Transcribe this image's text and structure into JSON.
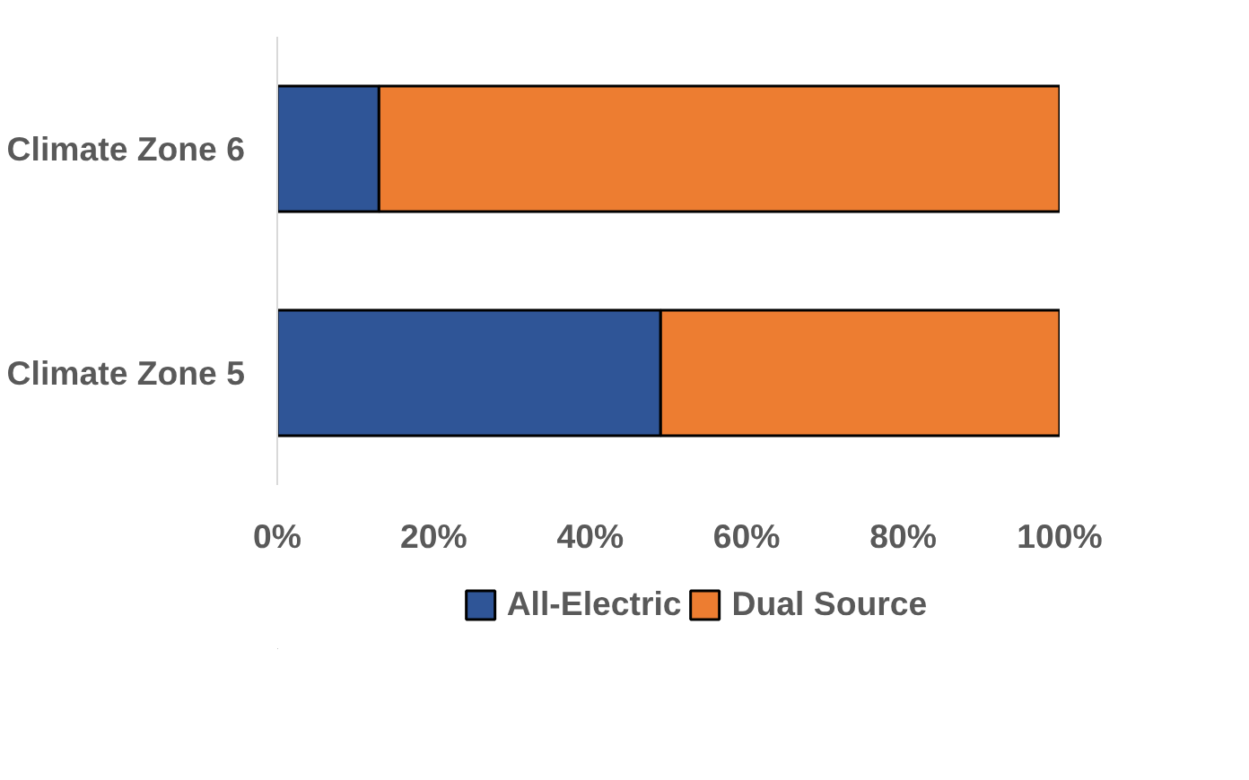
{
  "chart_data": {
    "type": "bar",
    "orientation": "horizontal",
    "stacked": true,
    "categories": [
      "Climate Zone 6",
      "Climate Zone 5"
    ],
    "series": [
      {
        "name": "All-Electric",
        "color": "#2f5597",
        "values": [
          13,
          49
        ]
      },
      {
        "name": "Dual Source",
        "color": "#ed7d31",
        "values": [
          87,
          51
        ]
      }
    ],
    "xlim": [
      0,
      100
    ],
    "xticks": [
      {
        "value": 0,
        "label": "0%"
      },
      {
        "value": 20,
        "label": "20%"
      },
      {
        "value": 40,
        "label": "40%"
      },
      {
        "value": 60,
        "label": "60%"
      },
      {
        "value": 80,
        "label": "80%"
      },
      {
        "value": 100,
        "label": "100%"
      }
    ],
    "grid": false,
    "legend": "bottom"
  }
}
